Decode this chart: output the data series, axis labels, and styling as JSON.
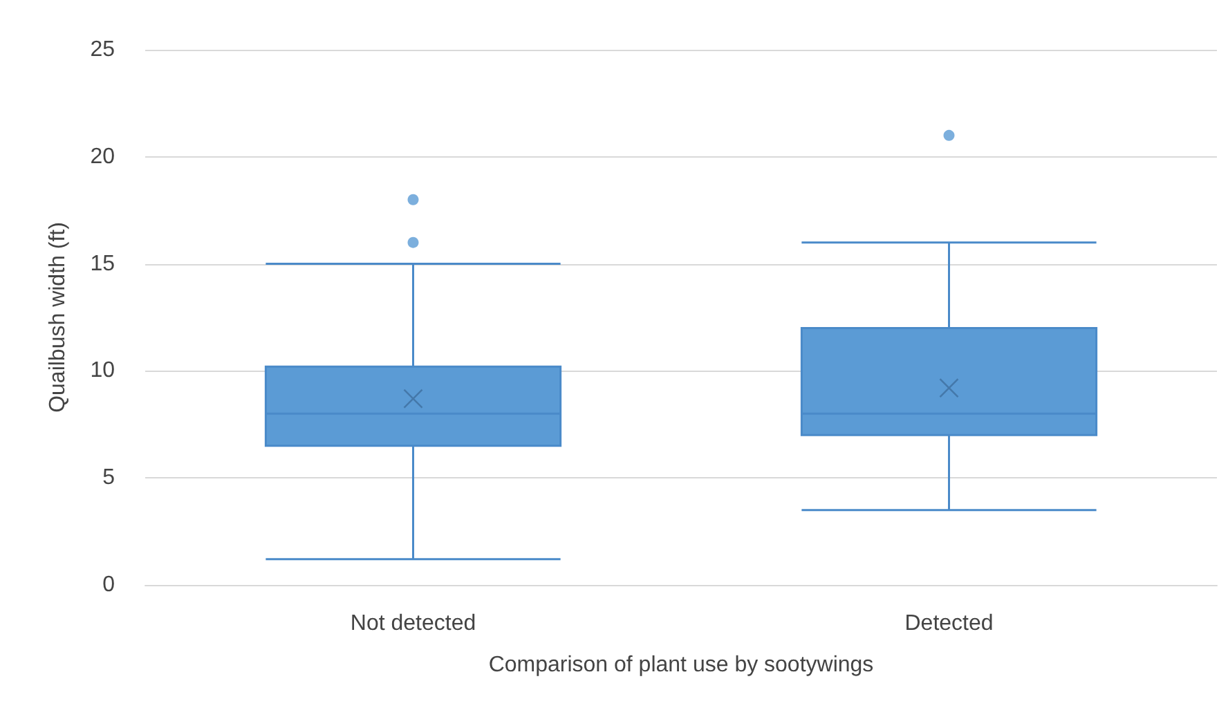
{
  "chart_data": {
    "type": "box",
    "xlabel": "Comparison of plant use by sootywings",
    "ylabel": "Quailbush width (ft)",
    "categories": [
      "Not detected",
      "Detected"
    ],
    "series": [
      {
        "color": "#5b9bd5",
        "boxes": [
          {
            "low": 1.2,
            "q1": 6.5,
            "median": 8,
            "q3": 10.2,
            "high": 15,
            "mean": 8.7,
            "outliers": [
              16,
              18
            ]
          },
          {
            "low": 3.5,
            "q1": 7,
            "median": 8,
            "q3": 12,
            "high": 16,
            "mean": 9.2,
            "outliers": [
              21
            ]
          }
        ]
      }
    ],
    "ylim": [
      0,
      25
    ],
    "yticks": [
      0,
      5,
      10,
      15,
      20,
      25
    ],
    "grid": "y"
  }
}
